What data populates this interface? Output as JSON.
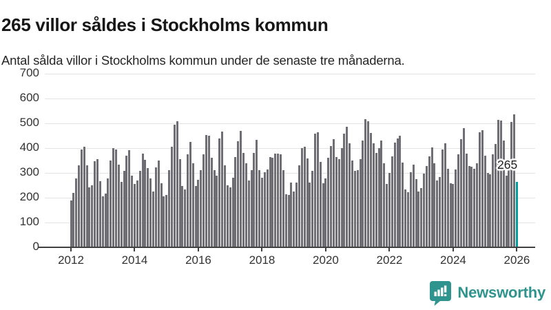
{
  "title": "265 villor såldes i Stockholms kommun",
  "subtitle": "Antal sålda villor i Stockholms kommun under de senaste tre månaderna.",
  "annotation": {
    "label": "265"
  },
  "branding": {
    "name": "Newsworthy",
    "color": "#2f948e",
    "icon": "newsworthy-speech-bubble-barchart-icon"
  },
  "chart_data": {
    "type": "bar",
    "title": "265 villor såldes i Stockholms kommun",
    "subtitle": "Antal sålda villor i Stockholms kommun under de senaste tre månaderna.",
    "xlabel": "",
    "ylabel": "",
    "ylim": [
      0,
      700
    ],
    "yticks": [
      0,
      100,
      200,
      300,
      400,
      500,
      600,
      700
    ],
    "xtick_labels": [
      "2012",
      "2014",
      "2016",
      "2018",
      "2020",
      "2022",
      "2024",
      "2026"
    ],
    "x_start_month": "2012-01",
    "x_end_month": "2026-01",
    "grid": "horizontal",
    "bar_color": "#6e6e74",
    "highlight_color": "#009e9e",
    "highlight_index": 168,
    "highlight_value": 265,
    "highlight_label": "265",
    "values": [
      190,
      220,
      277,
      330,
      394,
      405,
      330,
      241,
      249,
      346,
      356,
      266,
      206,
      218,
      277,
      350,
      400,
      394,
      333,
      264,
      307,
      369,
      393,
      288,
      255,
      269,
      307,
      379,
      353,
      320,
      278,
      225,
      323,
      350,
      257,
      206,
      210,
      311,
      405,
      495,
      509,
      355,
      246,
      232,
      374,
      425,
      339,
      246,
      271,
      310,
      374,
      453,
      449,
      360,
      311,
      288,
      439,
      467,
      330,
      250,
      241,
      280,
      364,
      429,
      470,
      380,
      340,
      270,
      310,
      380,
      433,
      311,
      280,
      302,
      313,
      364,
      361,
      379,
      377,
      374,
      311,
      213,
      210,
      260,
      224,
      260,
      330,
      400,
      405,
      358,
      260,
      307,
      458,
      463,
      344,
      257,
      278,
      360,
      409,
      437,
      363,
      356,
      400,
      458,
      485,
      420,
      350,
      307,
      310,
      355,
      430,
      517,
      508,
      460,
      419,
      380,
      400,
      430,
      340,
      255,
      299,
      367,
      421,
      439,
      451,
      341,
      234,
      222,
      302,
      332,
      274,
      224,
      238,
      297,
      327,
      367,
      402,
      339,
      269,
      283,
      395,
      419,
      318,
      257,
      255,
      313,
      374,
      437,
      481,
      379,
      327,
      325,
      318,
      340,
      465,
      472,
      369,
      300,
      295,
      375,
      418,
      515,
      512,
      430,
      290,
      315,
      505,
      535,
      265
    ]
  }
}
